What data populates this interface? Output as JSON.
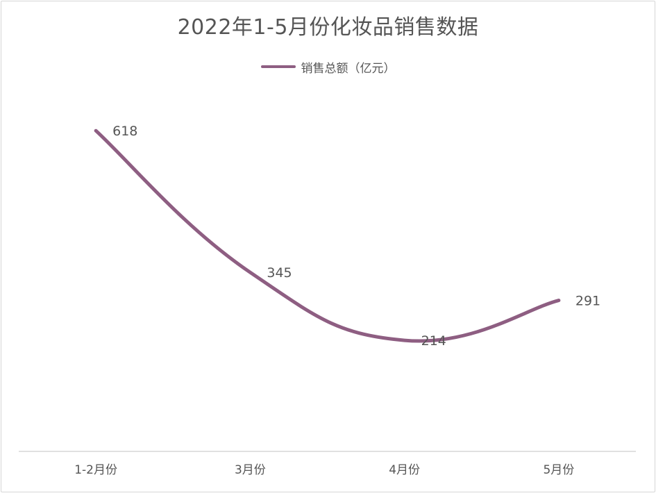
{
  "chart_data": {
    "type": "line",
    "title": "2022年1-5月份化妆品销售数据",
    "categories": [
      "1-2月份",
      "3月份",
      "4月份",
      "5月份"
    ],
    "series": [
      {
        "name": "销售总额（亿元）",
        "values": [
          618,
          345,
          214,
          291
        ],
        "color": "#8e5e82"
      }
    ],
    "ylim": [
      0,
      720
    ],
    "grid": false,
    "legend_position": "top",
    "smooth": true
  }
}
